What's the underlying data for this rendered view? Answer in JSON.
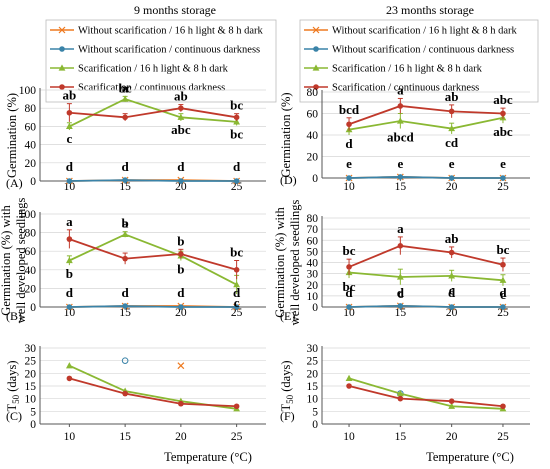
{
  "figure": {
    "col_titles": [
      "9 months storage",
      "23 months storage"
    ],
    "xlabel": "Temperature (°C)"
  },
  "legend": {
    "items": [
      {
        "label": "Without scarification / 16 h light & 8 h dark",
        "color": "#ee7a20",
        "marker": "x"
      },
      {
        "label": "Without scarification / continuous darkness",
        "color": "#3a83a8",
        "marker": "circle"
      },
      {
        "label": "Scarification / 16 h light & 8 h dark",
        "color": "#8ab833",
        "marker": "triangle"
      },
      {
        "label": "Scarification / continuous darkness",
        "color": "#c0392b",
        "marker": "circle"
      }
    ]
  },
  "chart_data": [
    {
      "panel": "(A)",
      "type": "line",
      "storage": "9 months storage",
      "ylabel": "Germination (%)",
      "ylim": [
        0,
        100
      ],
      "yticks": [
        0,
        20,
        40,
        60,
        80,
        100
      ],
      "x": [
        10,
        15,
        20,
        25
      ],
      "series": [
        {
          "name": "Without scarification / 16 h light & 8 h dark",
          "values": [
            0,
            1,
            1,
            0
          ],
          "err": [
            0,
            0,
            0,
            0
          ],
          "letters": [
            "d",
            "d",
            "d",
            "d"
          ]
        },
        {
          "name": "Without scarification / continuous darkness",
          "values": [
            0,
            1,
            0,
            0
          ],
          "err": [
            0,
            0,
            0,
            0
          ],
          "letters": []
        },
        {
          "name": "Scarification / 16 h light & 8 h dark",
          "values": [
            60,
            90,
            70,
            65
          ],
          "err": [
            4,
            3,
            4,
            4
          ],
          "letters": [
            "c",
            "a",
            "abc",
            "bc"
          ]
        },
        {
          "name": "Scarification / continuous darkness",
          "values": [
            75,
            70,
            80,
            70
          ],
          "err": [
            10,
            4,
            4,
            4
          ],
          "letters": [
            "ab",
            "bc",
            "ab",
            "bc"
          ]
        }
      ]
    },
    {
      "panel": "(B)",
      "type": "line",
      "storage": "9 months storage",
      "ylabel": "Germination (%) with well developed seedlings",
      "ylim": [
        0,
        100
      ],
      "yticks": [
        0,
        20,
        40,
        60,
        80,
        100
      ],
      "x": [
        10,
        15,
        20,
        25
      ],
      "series": [
        {
          "name": "Without scarification / 16 h light & 8 h dark",
          "values": [
            0,
            1,
            1,
            0
          ],
          "err": [
            0,
            0,
            0,
            0
          ],
          "letters": [
            "d",
            "d",
            "d",
            "d"
          ]
        },
        {
          "name": "Without scarification / continuous darkness",
          "values": [
            0,
            1,
            0,
            0
          ],
          "err": [
            0,
            0,
            0,
            0
          ],
          "letters": []
        },
        {
          "name": "Scarification / 16 h light & 8 h dark",
          "values": [
            50,
            78,
            55,
            24
          ],
          "err": [
            5,
            3,
            5,
            10
          ],
          "letters": [
            "b",
            "a",
            "b",
            "c"
          ]
        },
        {
          "name": "Scarification / continuous darkness",
          "values": [
            73,
            52,
            57,
            40
          ],
          "err": [
            10,
            6,
            5,
            10
          ],
          "letters": [
            "a",
            "b",
            "b",
            "bc"
          ]
        }
      ]
    },
    {
      "panel": "(C)",
      "type": "line",
      "storage": "9 months storage",
      "ylabel": "T50 (days)",
      "ylim": [
        0,
        30
      ],
      "yticks": [
        0,
        5,
        10,
        15,
        20,
        25,
        30
      ],
      "x": [
        10,
        15,
        20,
        25
      ],
      "series": [
        {
          "name": "Without scarification / 16 h light & 8 h dark",
          "values": [
            null,
            null,
            23,
            null
          ]
        },
        {
          "name": "Without scarification / continuous darkness",
          "values": [
            null,
            25,
            null,
            null
          ]
        },
        {
          "name": "Scarification / 16 h light & 8 h dark",
          "values": [
            23,
            13,
            9,
            6
          ]
        },
        {
          "name": "Scarification / continuous darkness",
          "values": [
            18,
            12,
            8,
            7
          ]
        }
      ]
    },
    {
      "panel": "(D)",
      "type": "line",
      "storage": "23 months storage",
      "ylabel": "Germination (%)",
      "ylim": [
        0,
        80
      ],
      "yticks": [
        0,
        20,
        40,
        60,
        80
      ],
      "x": [
        10,
        15,
        20,
        25
      ],
      "series": [
        {
          "name": "Without scarification / 16 h light & 8 h dark",
          "values": [
            0,
            1,
            0,
            0
          ],
          "err": [
            0,
            0,
            0,
            0
          ],
          "letters": [
            "e",
            "e",
            "e",
            "e"
          ]
        },
        {
          "name": "Without scarification / continuous darkness",
          "values": [
            0,
            1,
            0,
            0
          ],
          "err": [
            0,
            0,
            0,
            0
          ],
          "letters": []
        },
        {
          "name": "Scarification / 16 h light & 8 h dark",
          "values": [
            45,
            53,
            46,
            56
          ],
          "err": [
            5,
            7,
            5,
            5
          ],
          "letters": [
            "d",
            "abcd",
            "cd",
            "abc"
          ]
        },
        {
          "name": "Scarification / continuous darkness",
          "values": [
            50,
            67,
            62,
            60
          ],
          "err": [
            6,
            7,
            6,
            5
          ],
          "letters": [
            "bcd",
            "a",
            "ab",
            "abc"
          ]
        }
      ]
    },
    {
      "panel": "(E)",
      "type": "line",
      "storage": "23 months storage",
      "ylabel": "Germination (%) with well developed seedlings",
      "ylim": [
        0,
        80
      ],
      "yticks": [
        0,
        10,
        20,
        30,
        40,
        50,
        60,
        70,
        80
      ],
      "x": [
        10,
        15,
        20,
        25
      ],
      "series": [
        {
          "name": "Without scarification / 16 h light & 8 h dark",
          "values": [
            0,
            1,
            0,
            0
          ],
          "err": [
            0,
            0,
            0,
            0
          ],
          "letters": [
            "d",
            "d",
            "d",
            "d"
          ]
        },
        {
          "name": "Without scarification / continuous darkness",
          "values": [
            0,
            1,
            0,
            0
          ],
          "err": [
            0,
            0,
            0,
            0
          ],
          "letters": []
        },
        {
          "name": "Scarification / 16 h light & 8 h dark",
          "values": [
            31,
            27,
            28,
            24
          ],
          "err": [
            5,
            7,
            5,
            5
          ],
          "letters": [
            "bc",
            "c",
            "c",
            "c"
          ]
        },
        {
          "name": "Scarification / continuous darkness",
          "values": [
            36,
            55,
            49,
            38
          ],
          "err": [
            7,
            8,
            5,
            6
          ],
          "letters": [
            "bc",
            "a",
            "ab",
            "bc"
          ]
        }
      ]
    },
    {
      "panel": "(F)",
      "type": "line",
      "storage": "23 months storage",
      "ylabel": "T50 (days)",
      "ylim": [
        0,
        30
      ],
      "yticks": [
        0,
        5,
        10,
        15,
        20,
        25,
        30
      ],
      "x": [
        10,
        15,
        20,
        25
      ],
      "series": [
        {
          "name": "Without scarification / 16 h light & 8 h dark",
          "values": [
            null,
            null,
            null,
            null
          ]
        },
        {
          "name": "Without scarification / continuous darkness",
          "values": [
            null,
            12,
            null,
            null
          ]
        },
        {
          "name": "Scarification / 16 h light & 8 h dark",
          "values": [
            18,
            12,
            7,
            6
          ]
        },
        {
          "name": "Scarification / continuous darkness",
          "values": [
            15,
            10,
            9,
            7
          ]
        }
      ]
    }
  ]
}
